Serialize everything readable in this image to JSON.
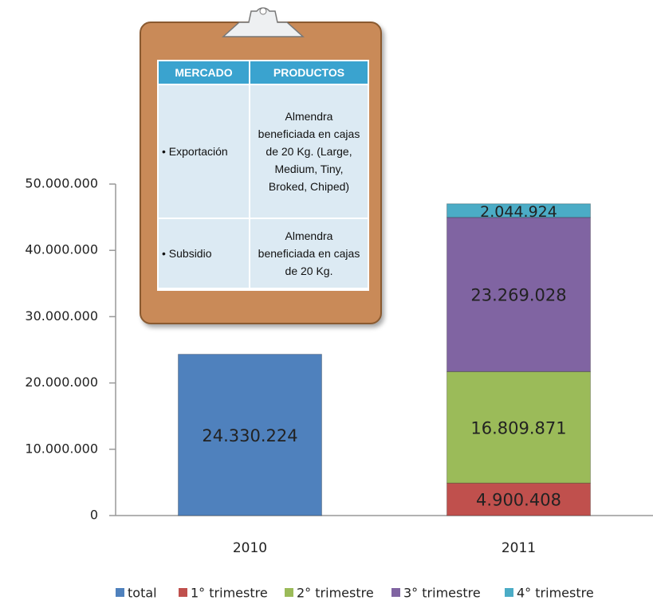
{
  "chart_data": {
    "type": "stacked_bar",
    "categories": [
      "2010",
      "2011"
    ],
    "series": [
      {
        "name": "total",
        "color": "#4f81bd",
        "values": [
          24330224,
          null
        ],
        "value_labels": [
          "24.330.224",
          null
        ]
      },
      {
        "name": "1° trimestre",
        "color": "#c0504d",
        "values": [
          null,
          4900408
        ],
        "value_labels": [
          null,
          "4.900.408"
        ]
      },
      {
        "name": "2° trimestre",
        "color": "#9bbb59",
        "values": [
          null,
          16809871
        ],
        "value_labels": [
          null,
          "16.809.871"
        ]
      },
      {
        "name": "3° trimestre",
        "color": "#8064a2",
        "values": [
          null,
          23269028
        ],
        "value_labels": [
          null,
          "23.269.028"
        ]
      },
      {
        "name": "4° trimestre",
        "color": "#4bacc6",
        "values": [
          null,
          2044924
        ],
        "value_labels": [
          null,
          "2.044.924"
        ]
      }
    ],
    "ylim": [
      0,
      50000000
    ],
    "yticks": [
      0,
      {
        "value": 10000000,
        "label": "10.000.000"
      },
      {
        "value": 20000000,
        "label": "20.000.000"
      },
      {
        "value": 30000000,
        "label": "30.000.000"
      },
      {
        "value": 40000000,
        "label": "40.000.000"
      },
      {
        "value": 50000000,
        "label": "50.000.000"
      }
    ],
    "grid": false,
    "legend": "bottom"
  },
  "table": {
    "headers": [
      "MERCADO",
      "PRODUCTOS"
    ],
    "rows": [
      [
        "• Exportación",
        "Almendra beneficiada en cajas de 20 Kg. (Large, Medium, Tiny, Broked, Chiped)"
      ],
      [
        "• Subsidio",
        "Almendra beneficiada en cajas de 20 Kg."
      ]
    ]
  }
}
